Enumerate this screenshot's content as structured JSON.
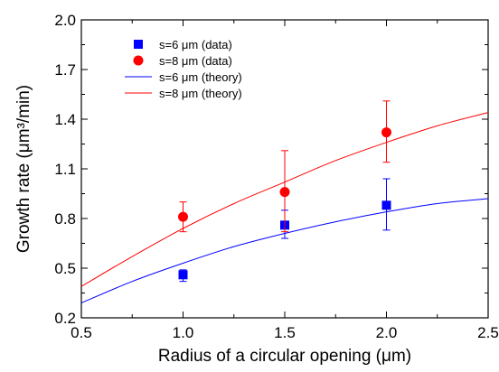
{
  "chart_data": {
    "type": "scatter",
    "xlabel": "Radius of a circular opening (μm)",
    "ylabel": "Growth rate (μm³/min)",
    "xlim": [
      0.5,
      2.5
    ],
    "ylim": [
      0.2,
      2.0
    ],
    "xticks": [
      "0.5",
      "1.0",
      "1.5",
      "2.0",
      "2.5"
    ],
    "yticks": [
      "0.2",
      "0.5",
      "0.8",
      "1.1",
      "1.4",
      "1.7",
      "2.0"
    ],
    "xtick_values": [
      0.5,
      1.0,
      1.5,
      2.0,
      2.5
    ],
    "ytick_values": [
      0.2,
      0.5,
      0.8,
      1.1,
      1.4,
      1.7,
      2.0
    ],
    "grid": false,
    "legend_position": "top-left",
    "series": [
      {
        "name": "s=6 μm  (data)",
        "kind": "points",
        "marker": "square",
        "color": "#0000ff",
        "x": [
          1.0,
          1.5,
          2.0
        ],
        "y": [
          0.46,
          0.76,
          0.88
        ],
        "err_low": [
          0.04,
          0.08,
          0.15
        ],
        "err_high": [
          0.03,
          0.09,
          0.16
        ]
      },
      {
        "name": "s=8 μm  (data)",
        "kind": "points",
        "marker": "circle",
        "color": "#ff0000",
        "x": [
          1.0,
          1.5,
          2.0
        ],
        "y": [
          0.81,
          0.96,
          1.32
        ],
        "err_low": [
          0.09,
          0.24,
          0.18
        ],
        "err_high": [
          0.09,
          0.25,
          0.19
        ]
      },
      {
        "name": "s=6 μm  (theory)",
        "kind": "line",
        "color": "#0000ff",
        "x": [
          0.5,
          0.75,
          1.0,
          1.25,
          1.5,
          1.75,
          2.0,
          2.25,
          2.5
        ],
        "y": [
          0.29,
          0.42,
          0.53,
          0.63,
          0.71,
          0.78,
          0.84,
          0.89,
          0.92
        ]
      },
      {
        "name": "s=8 μm (theory)",
        "kind": "line",
        "color": "#ff0000",
        "x": [
          0.5,
          0.75,
          1.0,
          1.25,
          1.5,
          1.75,
          2.0,
          2.25,
          2.5
        ],
        "y": [
          0.39,
          0.57,
          0.74,
          0.89,
          1.02,
          1.15,
          1.26,
          1.36,
          1.44
        ]
      }
    ]
  }
}
